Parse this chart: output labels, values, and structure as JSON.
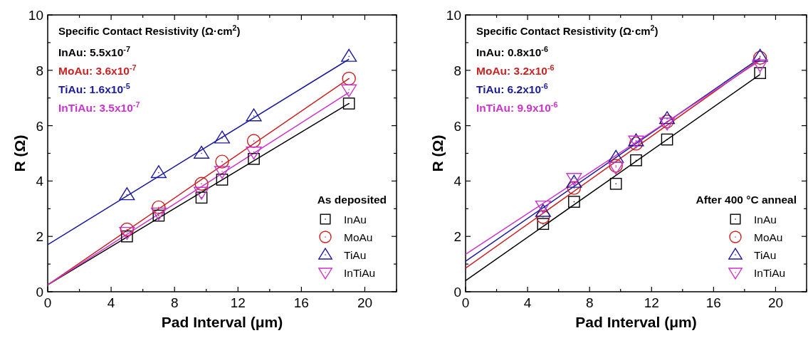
{
  "chart_data": [
    {
      "type": "scatter",
      "xlabel": "Pad Interval (μm)",
      "ylabel": "R (Ω)",
      "legend_title": "As deposited",
      "legend": "bottom right",
      "xlim": [
        0,
        22
      ],
      "ylim": [
        0,
        10
      ],
      "xticks": [
        0,
        {
          "value": 2,
          "label": null
        },
        4,
        {
          "value": 6,
          "label": null
        },
        8,
        {
          "value": 10,
          "label": null
        },
        12,
        {
          "value": 14,
          "label": null
        },
        16,
        {
          "value": 18,
          "label": null
        },
        20,
        {
          "value": 22,
          "label": null
        }
      ],
      "yticks": [
        0,
        {
          "value": 1,
          "label": null
        },
        2,
        {
          "value": 3,
          "label": null
        },
        4,
        {
          "value": 5,
          "label": null
        },
        6,
        {
          "value": 7,
          "label": null
        },
        8,
        {
          "value": 9,
          "label": null
        },
        10
      ],
      "annotations": [
        "Specific Contact Resistivity (Ω·cm$^{2}$)",
        "InAu: 5.5x10$^{-7}$",
        "MoAu: 3.6x10$^{-7}$",
        "TiAu: 1.6x10$^{-5}$",
        "InTiAu: 3.5x10$^{-7}$"
      ],
      "series": [
        {
          "name": "InAu",
          "color": "#000000",
          "marker": "square",
          "x": [
            5,
            7,
            9.7,
            11,
            13,
            19
          ],
          "values": [
            2.0,
            2.75,
            3.4,
            4.05,
            4.8,
            6.8
          ]
        },
        {
          "name": "MoAu",
          "color": "#cc2222",
          "marker": "circle",
          "x": [
            5,
            7,
            9.7,
            11,
            13,
            19
          ],
          "values": [
            2.25,
            3.05,
            3.9,
            4.7,
            5.45,
            7.7
          ]
        },
        {
          "name": "TiAu",
          "color": "#1a1aa0",
          "marker": "triangle",
          "x": [
            5,
            7,
            9.7,
            11,
            13,
            19
          ],
          "values": [
            3.5,
            4.3,
            5.0,
            5.55,
            6.35,
            8.5
          ]
        },
        {
          "name": "InTiAu",
          "color": "#cc33cc",
          "marker": "triangle-down",
          "x": [
            5,
            7,
            9.7,
            11,
            13,
            19
          ],
          "values": [
            2.15,
            2.85,
            3.6,
            4.35,
            5.05,
            7.3
          ]
        },
        {
          "type": "line",
          "color": "#000000",
          "x": [
            0,
            19
          ],
          "values": [
            0.25,
            6.8
          ]
        },
        {
          "type": "line",
          "color": "#cc2222",
          "x": [
            0,
            19
          ],
          "values": [
            0.25,
            7.7
          ]
        },
        {
          "type": "line",
          "color": "#1a1aa0",
          "x": [
            0,
            19
          ],
          "values": [
            1.7,
            8.4
          ]
        },
        {
          "type": "line",
          "color": "#cc33cc",
          "x": [
            0,
            19
          ],
          "values": [
            0.25,
            7.2
          ]
        }
      ]
    },
    {
      "type": "scatter",
      "xlabel": "Pad Interval (μm)",
      "ylabel": "R (Ω)",
      "legend_title": "After 400 °C anneal",
      "legend": "bottom right",
      "xlim": [
        0,
        22
      ],
      "ylim": [
        0,
        10
      ],
      "xticks": [
        0,
        {
          "value": 2,
          "label": null
        },
        4,
        {
          "value": 6,
          "label": null
        },
        8,
        {
          "value": 10,
          "label": null
        },
        12,
        {
          "value": 14,
          "label": null
        },
        16,
        {
          "value": 18,
          "label": null
        },
        20,
        {
          "value": 22,
          "label": null
        }
      ],
      "yticks": [
        0,
        {
          "value": 1,
          "label": null
        },
        2,
        {
          "value": 3,
          "label": null
        },
        4,
        {
          "value": 5,
          "label": null
        },
        6,
        {
          "value": 7,
          "label": null
        },
        8,
        {
          "value": 9,
          "label": null
        },
        10
      ],
      "annotations": [
        "Specific Contact Resistivity (Ω·cm$^{2}$)",
        "InAu: 0.8x10$^{-6}$",
        "MoAu: 3.2x10$^{-6}$",
        "TiAu: 6.2x10$^{-6}$",
        "InTiAu: 9.9x10$^{-6}$"
      ],
      "series": [
        {
          "name": "InAu",
          "color": "#000000",
          "marker": "square",
          "x": [
            5,
            7,
            9.7,
            11,
            13,
            19
          ],
          "values": [
            2.45,
            3.25,
            3.9,
            4.75,
            5.5,
            7.9
          ]
        },
        {
          "name": "MoAu",
          "color": "#cc2222",
          "marker": "circle",
          "x": [
            5,
            7,
            9.7,
            11,
            13,
            19
          ],
          "values": [
            2.7,
            3.75,
            4.55,
            5.35,
            6.15,
            8.45
          ]
        },
        {
          "name": "TiAu",
          "color": "#1a1aa0",
          "marker": "triangle",
          "x": [
            5,
            7,
            9.7,
            11,
            13,
            19
          ],
          "values": [
            2.9,
            3.95,
            4.85,
            5.45,
            6.25,
            8.5
          ]
        },
        {
          "name": "InTiAu",
          "color": "#cc33cc",
          "marker": "triangle-down",
          "x": [
            5,
            7,
            9.7,
            11,
            13,
            19
          ],
          "values": [
            3.1,
            4.1,
            4.5,
            5.45,
            6.1,
            8.2
          ]
        },
        {
          "type": "line",
          "color": "#000000",
          "x": [
            0,
            19
          ],
          "values": [
            0.4,
            7.85
          ]
        },
        {
          "type": "line",
          "color": "#cc2222",
          "x": [
            0,
            19
          ],
          "values": [
            0.85,
            8.4
          ]
        },
        {
          "type": "line",
          "color": "#1a1aa0",
          "x": [
            0,
            19
          ],
          "values": [
            1.1,
            8.45
          ]
        },
        {
          "type": "line",
          "color": "#cc33cc",
          "x": [
            0,
            19
          ],
          "values": [
            1.35,
            8.35
          ]
        }
      ]
    }
  ]
}
